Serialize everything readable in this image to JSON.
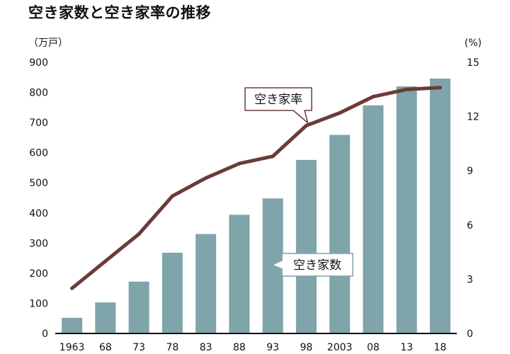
{
  "chart_data": {
    "type": "bar+line",
    "title": "空き家数と空き家率の推移",
    "categories": [
      "1963",
      "68",
      "73",
      "78",
      "83",
      "88",
      "93",
      "98",
      "2003",
      "08",
      "13",
      "18"
    ],
    "series": [
      {
        "name": "空き家数",
        "type": "bar",
        "axis": "left",
        "color": "#7fa4aa",
        "values": [
          52,
          103,
          172,
          268,
          330,
          394,
          448,
          576,
          659,
          757,
          820,
          846
        ]
      },
      {
        "name": "空き家率",
        "type": "line",
        "axis": "right",
        "color": "#6b3b38",
        "values": [
          2.5,
          4.0,
          5.5,
          7.6,
          8.6,
          9.4,
          9.8,
          11.5,
          12.2,
          13.1,
          13.5,
          13.6
        ]
      }
    ],
    "left_axis": {
      "unit": "（万戸）",
      "range": [
        0,
        900
      ],
      "ticks": [
        "0",
        "100",
        "200",
        "300",
        "400",
        "500",
        "600",
        "700",
        "800",
        "900"
      ]
    },
    "right_axis": {
      "unit": "(%)",
      "range": [
        0,
        15
      ],
      "ticks": [
        "0",
        "3",
        "6",
        "9",
        "12",
        "15"
      ]
    },
    "grid": false,
    "legend": "callouts"
  }
}
